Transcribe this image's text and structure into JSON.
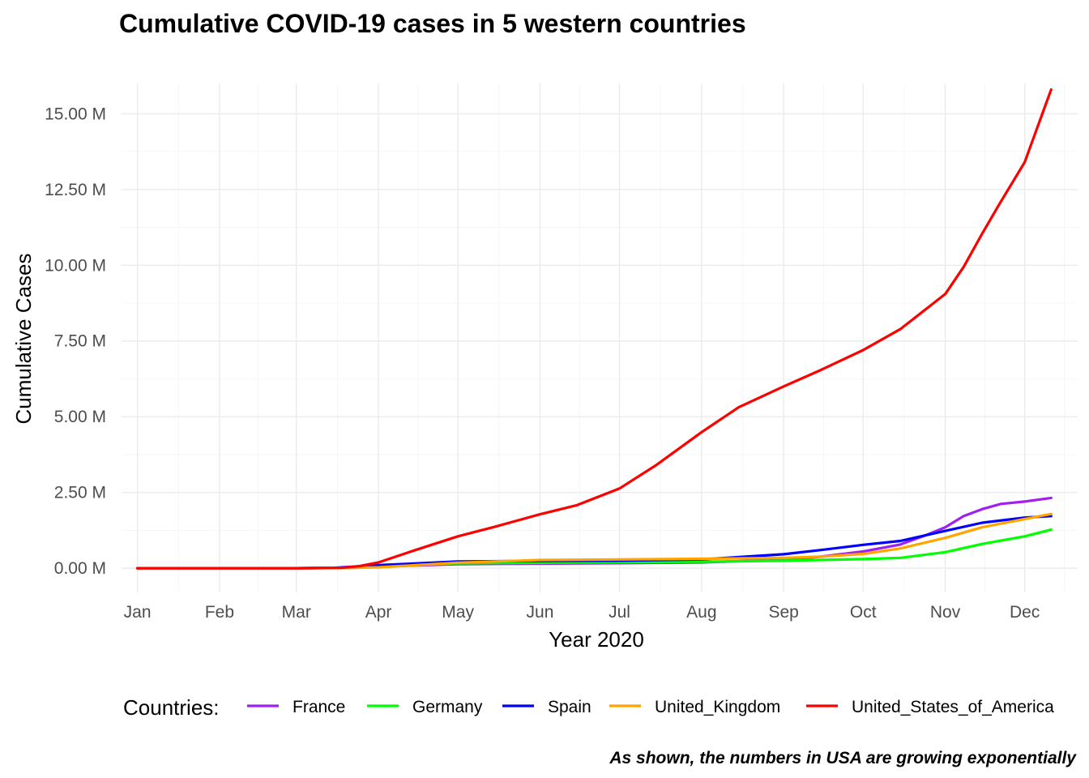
{
  "chart_data": {
    "type": "line",
    "title": "Cumulative COVID-19 cases in 5 western countries",
    "xlabel": "Year 2020",
    "ylabel": "Cumulative Cases",
    "caption": "As shown, the numbers in USA are growing exponentially",
    "legend_title": "Countries:",
    "legend_position": "bottom",
    "grid": true,
    "xlim": [
      "2019-12-26",
      "2020-12-21"
    ],
    "ylim": [
      -0.8,
      16.0
    ],
    "y_unit": "M",
    "x_ticks": [
      {
        "label": "Jan",
        "date": "2020-01-01"
      },
      {
        "label": "Feb",
        "date": "2020-02-01"
      },
      {
        "label": "Mar",
        "date": "2020-03-01"
      },
      {
        "label": "Apr",
        "date": "2020-04-01"
      },
      {
        "label": "May",
        "date": "2020-05-01"
      },
      {
        "label": "Jun",
        "date": "2020-06-01"
      },
      {
        "label": "Jul",
        "date": "2020-07-01"
      },
      {
        "label": "Aug",
        "date": "2020-08-01"
      },
      {
        "label": "Sep",
        "date": "2020-09-01"
      },
      {
        "label": "Oct",
        "date": "2020-10-01"
      },
      {
        "label": "Nov",
        "date": "2020-11-01"
      },
      {
        "label": "Dec",
        "date": "2020-12-01"
      }
    ],
    "y_ticks": [
      {
        "label": "0.00 M",
        "value": 0
      },
      {
        "label": "2.50 M",
        "value": 2.5
      },
      {
        "label": "5.00 M",
        "value": 5
      },
      {
        "label": "7.50 M",
        "value": 7.5
      },
      {
        "label": "10.00 M",
        "value": 10
      },
      {
        "label": "12.50 M",
        "value": 12.5
      },
      {
        "label": "15.00 M",
        "value": 15
      }
    ],
    "series": [
      {
        "name": "France",
        "color": "#A020F0",
        "points": [
          [
            "2020-01-01",
            0
          ],
          [
            "2020-03-01",
            0
          ],
          [
            "2020-03-15",
            0.005
          ],
          [
            "2020-04-01",
            0.05
          ],
          [
            "2020-05-01",
            0.13
          ],
          [
            "2020-06-01",
            0.15
          ],
          [
            "2020-07-01",
            0.165
          ],
          [
            "2020-08-01",
            0.19
          ],
          [
            "2020-09-01",
            0.28
          ],
          [
            "2020-09-15",
            0.38
          ],
          [
            "2020-10-01",
            0.55
          ],
          [
            "2020-10-15",
            0.78
          ],
          [
            "2020-10-25",
            1.1
          ],
          [
            "2020-11-01",
            1.35
          ],
          [
            "2020-11-08",
            1.72
          ],
          [
            "2020-11-15",
            1.95
          ],
          [
            "2020-11-22",
            2.12
          ],
          [
            "2020-12-01",
            2.2
          ],
          [
            "2020-12-11",
            2.32
          ]
        ]
      },
      {
        "name": "Germany",
        "color": "#00FF00",
        "points": [
          [
            "2020-01-01",
            0
          ],
          [
            "2020-03-01",
            0
          ],
          [
            "2020-03-15",
            0.005
          ],
          [
            "2020-04-01",
            0.07
          ],
          [
            "2020-05-01",
            0.16
          ],
          [
            "2020-06-01",
            0.18
          ],
          [
            "2020-07-01",
            0.195
          ],
          [
            "2020-08-01",
            0.21
          ],
          [
            "2020-09-01",
            0.245
          ],
          [
            "2020-10-01",
            0.3
          ],
          [
            "2020-10-15",
            0.34
          ],
          [
            "2020-11-01",
            0.53
          ],
          [
            "2020-11-15",
            0.8
          ],
          [
            "2020-12-01",
            1.05
          ],
          [
            "2020-12-11",
            1.27
          ]
        ]
      },
      {
        "name": "Spain",
        "color": "#0000FF",
        "points": [
          [
            "2020-01-01",
            0
          ],
          [
            "2020-03-01",
            0
          ],
          [
            "2020-03-15",
            0.01
          ],
          [
            "2020-04-01",
            0.1
          ],
          [
            "2020-05-01",
            0.22
          ],
          [
            "2020-06-01",
            0.24
          ],
          [
            "2020-07-01",
            0.25
          ],
          [
            "2020-08-01",
            0.29
          ],
          [
            "2020-09-01",
            0.46
          ],
          [
            "2020-09-15",
            0.6
          ],
          [
            "2020-10-01",
            0.77
          ],
          [
            "2020-10-15",
            0.9
          ],
          [
            "2020-11-01",
            1.23
          ],
          [
            "2020-11-15",
            1.5
          ],
          [
            "2020-12-01",
            1.67
          ],
          [
            "2020-12-11",
            1.72
          ]
        ]
      },
      {
        "name": "United_Kingdom",
        "color": "#FFA500",
        "points": [
          [
            "2020-01-01",
            0
          ],
          [
            "2020-03-01",
            0
          ],
          [
            "2020-03-20",
            0.005
          ],
          [
            "2020-04-01",
            0.03
          ],
          [
            "2020-05-01",
            0.18
          ],
          [
            "2020-06-01",
            0.27
          ],
          [
            "2020-07-01",
            0.29
          ],
          [
            "2020-08-01",
            0.31
          ],
          [
            "2020-09-01",
            0.34
          ],
          [
            "2020-09-15",
            0.38
          ],
          [
            "2020-10-01",
            0.47
          ],
          [
            "2020-10-15",
            0.65
          ],
          [
            "2020-11-01",
            1.0
          ],
          [
            "2020-11-15",
            1.35
          ],
          [
            "2020-12-01",
            1.62
          ],
          [
            "2020-12-11",
            1.79
          ]
        ]
      },
      {
        "name": "United_States_of_America",
        "color": "#FF0000",
        "points": [
          [
            "2020-01-01",
            0
          ],
          [
            "2020-03-01",
            0
          ],
          [
            "2020-03-18",
            0.01
          ],
          [
            "2020-03-25",
            0.07
          ],
          [
            "2020-04-01",
            0.19
          ],
          [
            "2020-04-15",
            0.6
          ],
          [
            "2020-05-01",
            1.05
          ],
          [
            "2020-05-15",
            1.37
          ],
          [
            "2020-06-01",
            1.78
          ],
          [
            "2020-06-15",
            2.08
          ],
          [
            "2020-07-01",
            2.63
          ],
          [
            "2020-07-15",
            3.41
          ],
          [
            "2020-08-01",
            4.49
          ],
          [
            "2020-08-15",
            5.31
          ],
          [
            "2020-09-01",
            6.0
          ],
          [
            "2020-09-15",
            6.54
          ],
          [
            "2020-10-01",
            7.2
          ],
          [
            "2020-10-15",
            7.89
          ],
          [
            "2020-11-01",
            9.05
          ],
          [
            "2020-11-08",
            9.95
          ],
          [
            "2020-11-15",
            11.05
          ],
          [
            "2020-11-22",
            12.1
          ],
          [
            "2020-12-01",
            13.4
          ],
          [
            "2020-12-11",
            15.8
          ]
        ]
      }
    ]
  }
}
